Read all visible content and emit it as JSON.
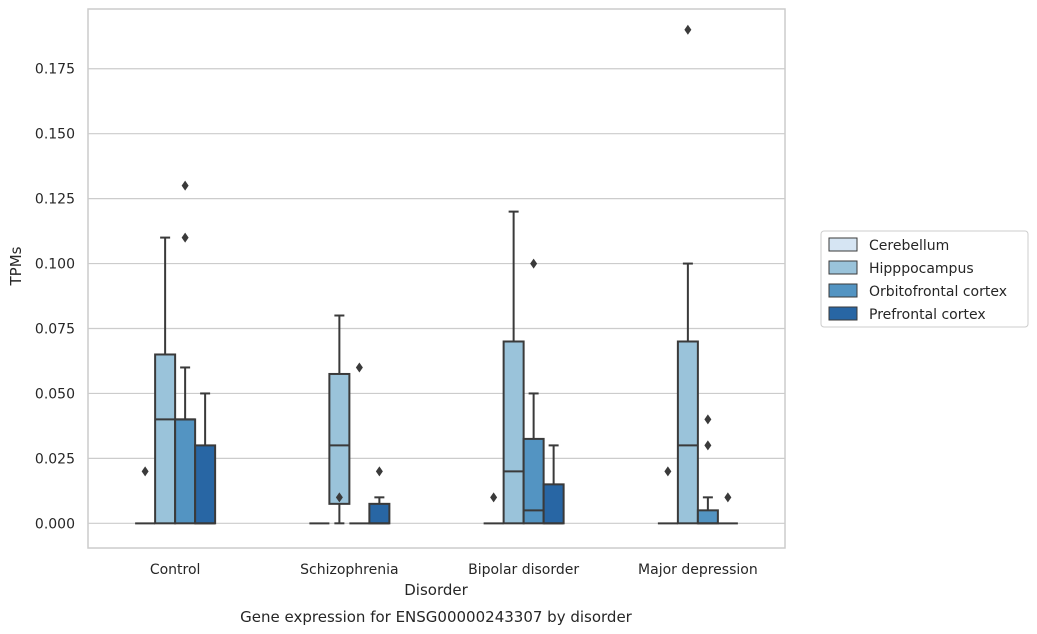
{
  "chart_data": {
    "type": "box",
    "caption": "Gene expression for ENSG00000243307 by disorder",
    "xlabel": "Disorder",
    "ylabel": "TPMs",
    "ylim": [
      -0.0095,
      0.198
    ],
    "yticks": [
      0.0,
      0.025,
      0.05,
      0.075,
      0.1,
      0.125,
      0.15,
      0.175
    ],
    "ytick_labels": [
      "0.000",
      "0.025",
      "0.050",
      "0.075",
      "0.100",
      "0.125",
      "0.150",
      "0.175"
    ],
    "grid": true,
    "legend_position": "right",
    "categories": [
      "Control",
      "Schizophrenia",
      "Bipolar disorder",
      "Major depression"
    ],
    "series": [
      {
        "name": "Cerebellum",
        "color": "#d6e5f3",
        "boxes": [
          {
            "q1": 0,
            "median": 0,
            "q3": 0,
            "whisker_low": 0,
            "whisker_high": 0,
            "fliers": [
              0.02
            ]
          },
          {
            "q1": 0,
            "median": 0,
            "q3": 0,
            "whisker_low": 0,
            "whisker_high": 0,
            "fliers": []
          },
          {
            "q1": 0,
            "median": 0,
            "q3": 0,
            "whisker_low": 0,
            "whisker_high": 0,
            "fliers": [
              0.01
            ]
          },
          {
            "q1": 0,
            "median": 0,
            "q3": 0,
            "whisker_low": 0,
            "whisker_high": 0,
            "fliers": [
              0.02
            ]
          }
        ]
      },
      {
        "name": "Hipppocampus",
        "color": "#9ac3da",
        "boxes": [
          {
            "q1": 0,
            "median": 0.04,
            "q3": 0.065,
            "whisker_low": 0,
            "whisker_high": 0.11,
            "fliers": []
          },
          {
            "q1": 0.0075,
            "median": 0.03,
            "q3": 0.0575,
            "whisker_low": 0,
            "whisker_high": 0.08,
            "fliers": [
              0.01
            ]
          },
          {
            "q1": 0,
            "median": 0.02,
            "q3": 0.07,
            "whisker_low": 0,
            "whisker_high": 0.12,
            "fliers": []
          },
          {
            "q1": 0,
            "median": 0.03,
            "q3": 0.07,
            "whisker_low": 0,
            "whisker_high": 0.1,
            "fliers": [
              0.19
            ]
          }
        ]
      },
      {
        "name": "Orbitofrontal cortex",
        "color": "#5394c2",
        "boxes": [
          {
            "q1": 0,
            "median": 0.04,
            "q3": 0.04,
            "whisker_low": 0,
            "whisker_high": 0.06,
            "fliers": [
              0.13,
              0.11
            ]
          },
          {
            "q1": 0,
            "median": 0,
            "q3": 0,
            "whisker_low": 0,
            "whisker_high": 0,
            "fliers": [
              0.06
            ]
          },
          {
            "q1": 0,
            "median": 0.005,
            "q3": 0.0325,
            "whisker_low": 0,
            "whisker_high": 0.05,
            "fliers": [
              0.1
            ]
          },
          {
            "q1": 0,
            "median": 0,
            "q3": 0.005,
            "whisker_low": 0,
            "whisker_high": 0.01,
            "fliers": [
              0.04,
              0.03
            ]
          }
        ]
      },
      {
        "name": "Prefrontal cortex",
        "color": "#2866a4",
        "boxes": [
          {
            "q1": 0,
            "median": 0,
            "q3": 0.03,
            "whisker_low": 0,
            "whisker_high": 0.05,
            "fliers": []
          },
          {
            "q1": 0,
            "median": 0,
            "q3": 0.0075,
            "whisker_low": 0,
            "whisker_high": 0.01,
            "fliers": [
              0.02
            ]
          },
          {
            "q1": 0,
            "median": 0,
            "q3": 0.015,
            "whisker_low": 0,
            "whisker_high": 0.03,
            "fliers": []
          },
          {
            "q1": 0,
            "median": 0,
            "q3": 0,
            "whisker_low": 0,
            "whisker_high": 0,
            "fliers": [
              0.01
            ]
          }
        ]
      }
    ]
  }
}
